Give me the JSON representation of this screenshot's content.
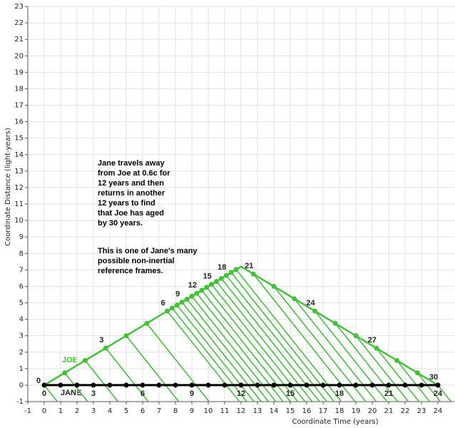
{
  "chart_data": {
    "type": "line",
    "xlabel": "Coordinate Time (years)",
    "ylabel": "Coordinate Distance (light-years)",
    "xlim": [
      -1,
      25
    ],
    "ylim": [
      -1,
      23
    ],
    "xticks": [
      -1,
      0,
      1,
      2,
      3,
      4,
      5,
      6,
      7,
      8,
      9,
      10,
      11,
      12,
      13,
      14,
      15,
      16,
      17,
      18,
      19,
      20,
      21,
      22,
      23,
      24
    ],
    "yticks": [
      -1,
      0,
      1,
      2,
      3,
      4,
      5,
      6,
      7,
      8,
      9,
      10,
      11,
      12,
      13,
      14,
      15,
      16,
      17,
      18,
      19,
      20,
      21,
      22,
      23
    ],
    "grid": true,
    "annotations": [
      [
        "Jane travels away",
        "from Joe at 0.6c for",
        "12 years and then",
        "returns in another",
        "12 years to find",
        "that Joe has aged",
        "by 30 years."
      ],
      [
        "This is one of Jane's many",
        "possible non-inertial",
        "reference frames."
      ]
    ],
    "series": [
      {
        "name": "JOE",
        "color": "#44c03c",
        "line": {
          "x": [
            0,
            12,
            24
          ],
          "y": [
            0,
            7.2,
            0
          ]
        },
        "x": [
          0,
          1.25,
          2.5,
          3.75,
          5,
          6.25,
          7.5,
          7.8,
          8.1,
          8.4,
          8.7,
          9.0,
          9.3,
          9.6,
          9.9,
          10.2,
          10.5,
          10.8,
          11.1,
          11.4,
          11.7,
          12.75,
          14,
          15.25,
          16.5,
          17.75,
          19,
          20.25,
          21.5,
          22.75,
          24
        ],
        "values": [
          0,
          0.75,
          1.5,
          2.25,
          3,
          3.75,
          4.5,
          4.68,
          4.86,
          5.04,
          5.22,
          5.4,
          5.58,
          5.76,
          5.94,
          6.12,
          6.3,
          6.48,
          6.66,
          6.84,
          7.02,
          6.75,
          6,
          5.25,
          4.5,
          3.75,
          3,
          2.25,
          1.5,
          0.75,
          0
        ],
        "point_labels": [
          0,
          null,
          null,
          3,
          null,
          null,
          6,
          null,
          null,
          9,
          null,
          null,
          12,
          null,
          null,
          15,
          null,
          null,
          18,
          null,
          null,
          21,
          null,
          null,
          24,
          null,
          null,
          27,
          null,
          null,
          30
        ]
      },
      {
        "name": "JANE",
        "color": "#000000",
        "x": [
          0,
          1,
          2,
          3,
          4,
          5,
          6,
          7,
          8,
          9,
          10,
          11,
          12,
          13,
          14,
          15,
          16,
          17,
          18,
          19,
          20,
          21,
          22,
          23,
          24
        ],
        "values": [
          0,
          0,
          0,
          0,
          0,
          0,
          0,
          0,
          0,
          0,
          0,
          0,
          0,
          0,
          0,
          0,
          0,
          0,
          0,
          0,
          0,
          0,
          0,
          0,
          0
        ],
        "point_labels": [
          0,
          null,
          null,
          3,
          null,
          null,
          6,
          null,
          null,
          9,
          null,
          null,
          12,
          null,
          null,
          15,
          null,
          null,
          18,
          null,
          null,
          21,
          null,
          null,
          24
        ]
      }
    ]
  }
}
